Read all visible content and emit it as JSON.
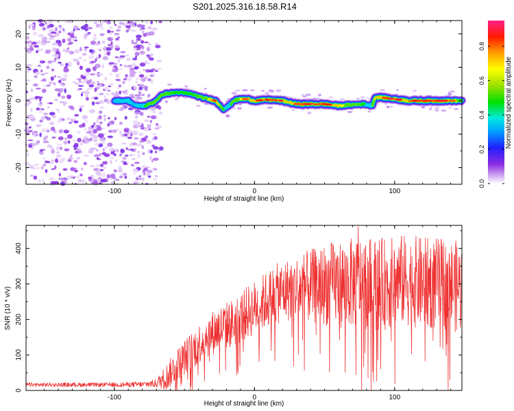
{
  "title": "S201.2025.316.18.58.R14",
  "chart_data": [
    {
      "type": "heatmap",
      "name": "spectrogram",
      "xlabel": "Height of straight line (km)",
      "ylabel": "Frequency (Hz)",
      "xlim": [
        -163,
        148
      ],
      "ylim": [
        -25,
        24
      ],
      "xticks": [
        -100,
        0,
        100
      ],
      "xtick_labels": [
        "-100",
        "0",
        "100"
      ],
      "yticks": [
        -20,
        -10,
        0,
        10,
        20
      ],
      "ytick_labels": [
        "-20",
        "-10",
        "0",
        "10",
        "20"
      ],
      "noise_region_x": [
        -163,
        -72
      ],
      "signal_start_x": -100,
      "ridge": {
        "x": [
          -100,
          -90,
          -85,
          -78,
          -72,
          -65,
          -55,
          -45,
          -38,
          -33,
          -28,
          -22,
          -18,
          -15,
          -10,
          -5,
          0,
          10,
          20,
          30,
          40,
          50,
          60,
          70,
          78,
          84,
          86,
          90,
          100,
          110,
          120,
          130,
          140,
          148
        ],
        "freq": [
          0,
          0,
          -1.5,
          -1.5,
          -0.5,
          2,
          2.5,
          2,
          1,
          0.5,
          0,
          -2.5,
          -1.5,
          0,
          0.5,
          0.5,
          0,
          0.3,
          0,
          -1,
          -1,
          -1,
          -1.5,
          -1.2,
          -1,
          -1.5,
          1,
          1,
          0.5,
          0,
          0,
          0,
          0,
          0
        ],
        "amplitude": [
          0.35,
          0.4,
          0.35,
          0.5,
          0.6,
          0.55,
          0.5,
          0.5,
          0.55,
          0.7,
          0.85,
          0.5,
          0.45,
          0.6,
          0.7,
          0.8,
          0.9,
          0.75,
          0.8,
          0.9,
          0.95,
          0.9,
          0.75,
          0.6,
          0.5,
          0.45,
          0.85,
          0.9,
          0.85,
          0.9,
          0.9,
          0.95,
          0.8,
          0.6
        ]
      }
    },
    {
      "type": "colorbar",
      "name": "amplitude-colorbar",
      "label": "Normalized spectral amplitude",
      "range": [
        0,
        0.95
      ],
      "ticks": [
        0.0,
        0.2,
        0.4,
        0.6,
        0.8
      ],
      "tick_labels": [
        "0.0",
        "0.2",
        "0.4",
        "0.6",
        "0.8"
      ]
    },
    {
      "type": "line",
      "name": "snr",
      "xlabel": "Height of straight line (km)",
      "ylabel": "SNR (10 * v/v)",
      "xlim": [
        -163,
        148
      ],
      "ylim": [
        0,
        465
      ],
      "xticks": [
        -100,
        0,
        100
      ],
      "xtick_labels": [
        "-100",
        "0",
        "100"
      ],
      "yticks": [
        0,
        100,
        200,
        300,
        400
      ],
      "ytick_labels": [
        "0",
        "100",
        "200",
        "300",
        "400"
      ],
      "color": "#ee3030",
      "envelope": {
        "x": [
          -163,
          -140,
          -120,
          -100,
          -80,
          -70,
          -62,
          -55,
          -45,
          -35,
          -25,
          -15,
          -5,
          5,
          15,
          25,
          35,
          45,
          55,
          65,
          75,
          85,
          95,
          105,
          115,
          125,
          135,
          148
        ],
        "mean": [
          16,
          16,
          16,
          16,
          17,
          20,
          40,
          75,
          110,
          150,
          175,
          190,
          220,
          245,
          270,
          285,
          290,
          295,
          300,
          300,
          305,
          300,
          300,
          310,
          305,
          300,
          300,
          290
        ],
        "spread": [
          6,
          6,
          6,
          6,
          8,
          12,
          40,
          45,
          55,
          60,
          65,
          70,
          75,
          80,
          85,
          90,
          100,
          110,
          120,
          125,
          130,
          130,
          130,
          130,
          130,
          130,
          130,
          130
        ]
      },
      "peak": {
        "x": 74,
        "y": 462
      }
    }
  ]
}
